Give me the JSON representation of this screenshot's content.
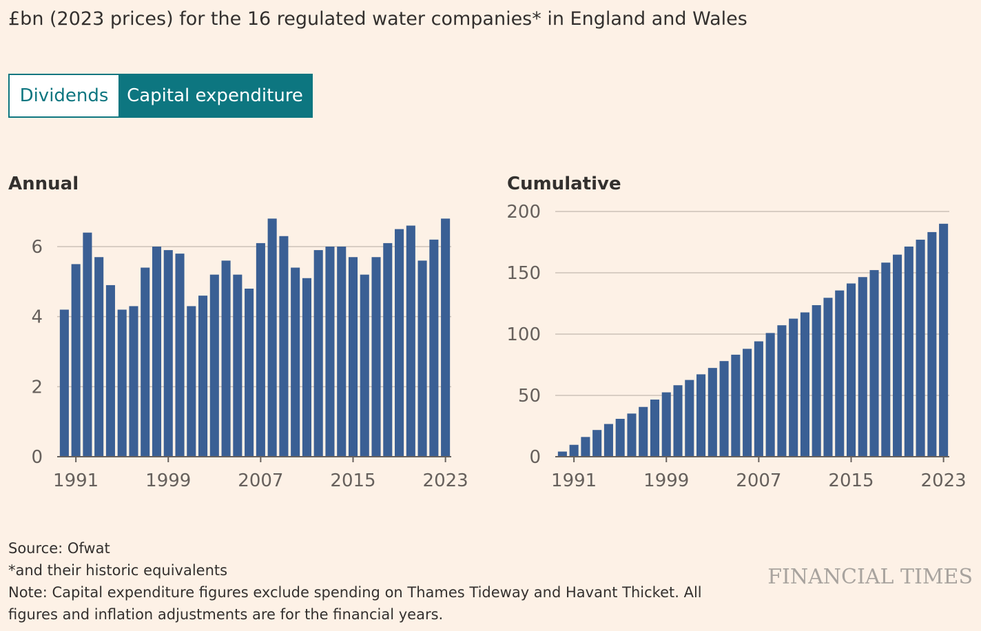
{
  "subtitle": "£bn (2023 prices) for the 16 regulated water companies* in England and Wales",
  "toggle": {
    "option_1": "Dividends",
    "option_2": "Capital expenditure",
    "selected": "Capital expenditure"
  },
  "colors": {
    "bar": "#3a5f94",
    "accent": "#0d7680",
    "grid": "#ccc1b7",
    "axis": "#66605c"
  },
  "chart_data": [
    {
      "type": "bar",
      "title": "Annual",
      "x": [
        1990,
        1991,
        1992,
        1993,
        1994,
        1995,
        1996,
        1997,
        1998,
        1999,
        2000,
        2001,
        2002,
        2003,
        2004,
        2005,
        2006,
        2007,
        2008,
        2009,
        2010,
        2011,
        2012,
        2013,
        2014,
        2015,
        2016,
        2017,
        2018,
        2019,
        2020,
        2021,
        2022,
        2023
      ],
      "values": [
        4.2,
        5.5,
        6.4,
        5.7,
        4.9,
        4.2,
        4.3,
        5.4,
        6.0,
        5.9,
        5.8,
        4.3,
        4.6,
        5.2,
        5.6,
        5.2,
        4.8,
        6.1,
        6.8,
        6.3,
        5.4,
        5.1,
        5.9,
        6.0,
        6.0,
        5.7,
        5.2,
        5.7,
        6.1,
        6.5,
        6.6,
        5.6,
        6.2,
        6.8
      ],
      "x_ticks": [
        "1991",
        "1999",
        "2007",
        "2015",
        "2023"
      ],
      "y_ticks": [
        "0",
        "2",
        "4",
        "6"
      ],
      "ylim": [
        0,
        7
      ],
      "grid": true
    },
    {
      "type": "bar",
      "title": "Cumulative",
      "x": [
        1990,
        1991,
        1992,
        1993,
        1994,
        1995,
        1996,
        1997,
        1998,
        1999,
        2000,
        2001,
        2002,
        2003,
        2004,
        2005,
        2006,
        2007,
        2008,
        2009,
        2010,
        2011,
        2012,
        2013,
        2014,
        2015,
        2016,
        2017,
        2018,
        2019,
        2020,
        2021,
        2022,
        2023
      ],
      "values": [
        4.2,
        9.7,
        16.1,
        21.8,
        26.7,
        30.9,
        35.2,
        40.6,
        46.6,
        52.5,
        58.3,
        62.6,
        67.2,
        72.4,
        78.0,
        83.2,
        88.0,
        94.1,
        100.9,
        107.2,
        112.6,
        117.7,
        123.6,
        129.6,
        135.6,
        141.3,
        146.5,
        152.2,
        158.3,
        164.8,
        171.4,
        177.0,
        183.2,
        190.0
      ],
      "x_ticks": [
        "1991",
        "1999",
        "2007",
        "2015",
        "2023"
      ],
      "y_ticks": [
        "0",
        "50",
        "100",
        "150",
        "200"
      ],
      "ylim": [
        0,
        200
      ],
      "grid": true
    }
  ],
  "footnotes": {
    "source": "Source: Ofwat",
    "asterisk": "*and their historic equivalents",
    "note_line_1": "Note: Capital expenditure figures exclude spending on Thames Tideway and Havant Thicket. All",
    "note_line_2": "figures and inflation adjustments are for the financial years."
  },
  "logo": "FINANCIAL TIMES"
}
